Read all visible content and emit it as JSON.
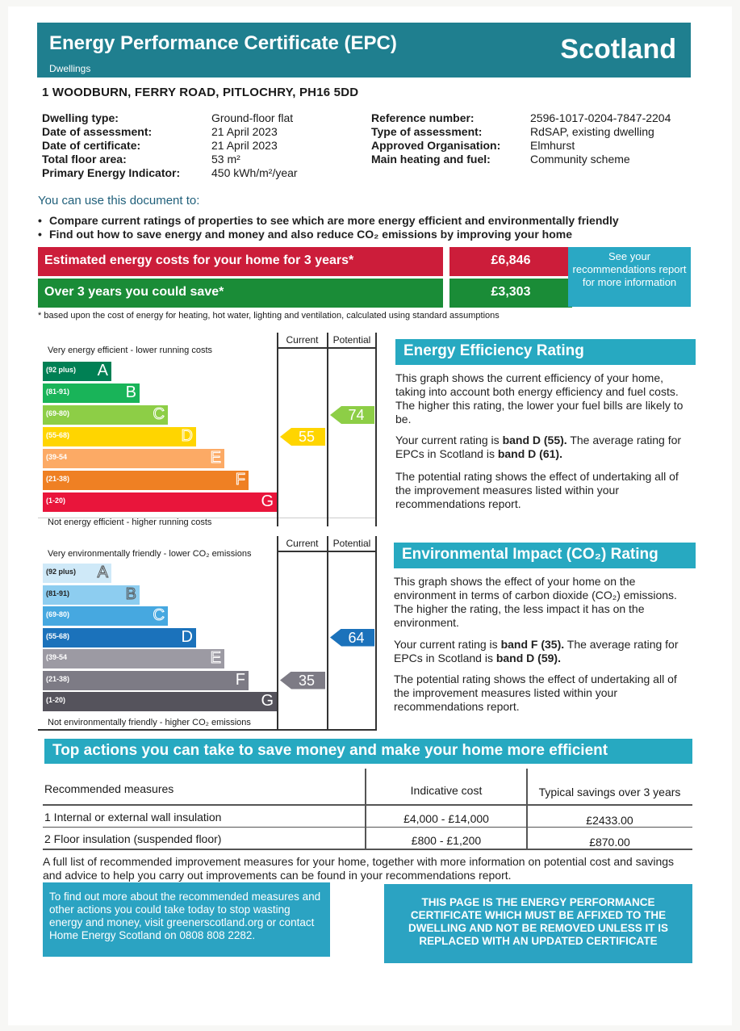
{
  "header": {
    "title": "Energy Performance Certificate (EPC)",
    "subtitle": "Dwellings",
    "country": "Scotland"
  },
  "address": "1 WOODBURN,  FERRY ROAD, PITLOCHRY, PH16 5DD",
  "details_left": [
    {
      "label": "Dwelling type:",
      "value": "Ground-floor flat"
    },
    {
      "label": "Date of assessment:",
      "value": "21 April 2023"
    },
    {
      "label": "Date of certificate:",
      "value": "21 April 2023"
    },
    {
      "label": "Total floor area:",
      "value": "53 m²"
    },
    {
      "label": "Primary Energy Indicator:",
      "value": "450 kWh/m²/year"
    }
  ],
  "details_right": [
    {
      "label": "Reference number:",
      "value": "2596-1017-0204-7847-2204"
    },
    {
      "label": "Type of assessment:",
      "value": "RdSAP, existing dwelling"
    },
    {
      "label": "Approved Organisation:",
      "value": "Elmhurst"
    },
    {
      "label": "Main heating and fuel:",
      "value": "Community scheme"
    }
  ],
  "use_heading": "You can use this document to:",
  "bullets": [
    "Compare current ratings of properties to see which are more energy efficient and environmentally friendly",
    "Find out how to save energy and money and also reduce CO₂ emissions by improving your home"
  ],
  "costs": {
    "estimated_label": "Estimated energy costs for your home for 3 years*",
    "estimated_value": "£6,846",
    "save_label": "Over 3 years you could save*",
    "save_value": "£3,303",
    "see_box": "See your recommendations report for more information",
    "footnote": "* based upon the cost of energy for heating, hot water, lighting and ventilation, calculated using standard assumptions"
  },
  "energy_chart": {
    "top_label": "Very energy efficient - lower running costs",
    "bottom_label": "Not energy efficient - higher running costs",
    "col_current": "Current",
    "col_potential": "Potential",
    "bands": [
      {
        "range": "(92 plus)",
        "letter": "A",
        "color": "#008054"
      },
      {
        "range": "(81-91)",
        "letter": "B",
        "color": "#19b459"
      },
      {
        "range": "(69-80)",
        "letter": "C",
        "color": "#8dce46"
      },
      {
        "range": "(55-68)",
        "letter": "D",
        "color": "#ffd500"
      },
      {
        "range": "(39-54",
        "letter": "E",
        "color": "#fcaa65"
      },
      {
        "range": "(21-38)",
        "letter": "F",
        "color": "#ef8023"
      },
      {
        "range": "(1-20)",
        "letter": "G",
        "color": "#e9153b"
      }
    ],
    "current": 55,
    "current_color": "#ffd500",
    "potential": 74,
    "potential_color": "#8dce46"
  },
  "energy_text": {
    "heading": "Energy Efficiency Rating",
    "p1": "This graph shows the current efficiency of your home, taking into account both energy efficiency and fuel costs. The higher this rating, the lower your fuel bills are likely to be.",
    "p2a": "Your current rating is ",
    "p2b": "band D (55).",
    "p2c": " The average rating for EPCs in Scotland is ",
    "p2d": "band D (61).",
    "p3": "The potential rating shows the effect of undertaking all of the improvement measures listed within your recommendations report."
  },
  "env_chart": {
    "top_label": "Very environmentally friendly - lower CO₂ emissions",
    "bottom_label": "Not environmentally friendly - higher CO₂ emissions",
    "col_current": "Current",
    "col_potential": "Potential",
    "bands": [
      {
        "range": "(92 plus)",
        "letter": "A",
        "color": "#cfe9f8"
      },
      {
        "range": "(81-91)",
        "letter": "B",
        "color": "#8dcdf0"
      },
      {
        "range": "(69-80)",
        "letter": "C",
        "color": "#46a8e0"
      },
      {
        "range": "(55-68)",
        "letter": "D",
        "color": "#1b72bb"
      },
      {
        "range": "(39-54",
        "letter": "E",
        "color": "#9c9aa3"
      },
      {
        "range": "(21-38)",
        "letter": "F",
        "color": "#7d7b85"
      },
      {
        "range": "(1-20)",
        "letter": "G",
        "color": "#55535c"
      }
    ],
    "current": 35,
    "current_color": "#7d7b85",
    "potential": 64,
    "potential_color": "#1b72bb"
  },
  "env_text": {
    "heading": "Environmental Impact (CO₂) Rating",
    "p1": "This graph shows the effect of your home on the environment in terms of carbon dioxide (CO₂) emissions. The higher the rating, the less impact it has on the environment.",
    "p2a": "Your current rating is ",
    "p2b": "band F (35).",
    "p2c": " The average rating for EPCs in Scotland is ",
    "p2d": "band D (59).",
    "p3": "The potential rating shows the effect of undertaking all of the improvement measures listed within your recommendations report."
  },
  "actions": {
    "heading": "Top actions you can take to save money and make your home more efficient",
    "col_measures": "Recommended measures",
    "col_cost": "Indicative cost",
    "col_savings": "Typical savings over 3 years",
    "rows": [
      {
        "measure": "1 Internal or external wall insulation",
        "cost": "£4,000 - £14,000",
        "saving": "£2433.00"
      },
      {
        "measure": "2 Floor insulation (suspended floor)",
        "cost": "£800 - £1,200",
        "saving": "£870.00"
      }
    ],
    "note": "A full list of recommended improvement measures for your home, together with more information on potential cost and savings and advice to help you carry out improvements can be found in your recommendations report."
  },
  "bottom_left": "To find out more about the recommended measures and other actions you could take today to stop wasting energy and money, visit greenerscotland.org or contact Home Energy Scotland on 0808 808 2282.",
  "bottom_right": "THIS PAGE IS THE ENERGY PERFORMANCE CERTIFICATE WHICH MUST BE AFFIXED TO THE DWELLING AND NOT BE REMOVED UNLESS IT IS REPLACED WITH AN UPDATED CERTIFICATE"
}
